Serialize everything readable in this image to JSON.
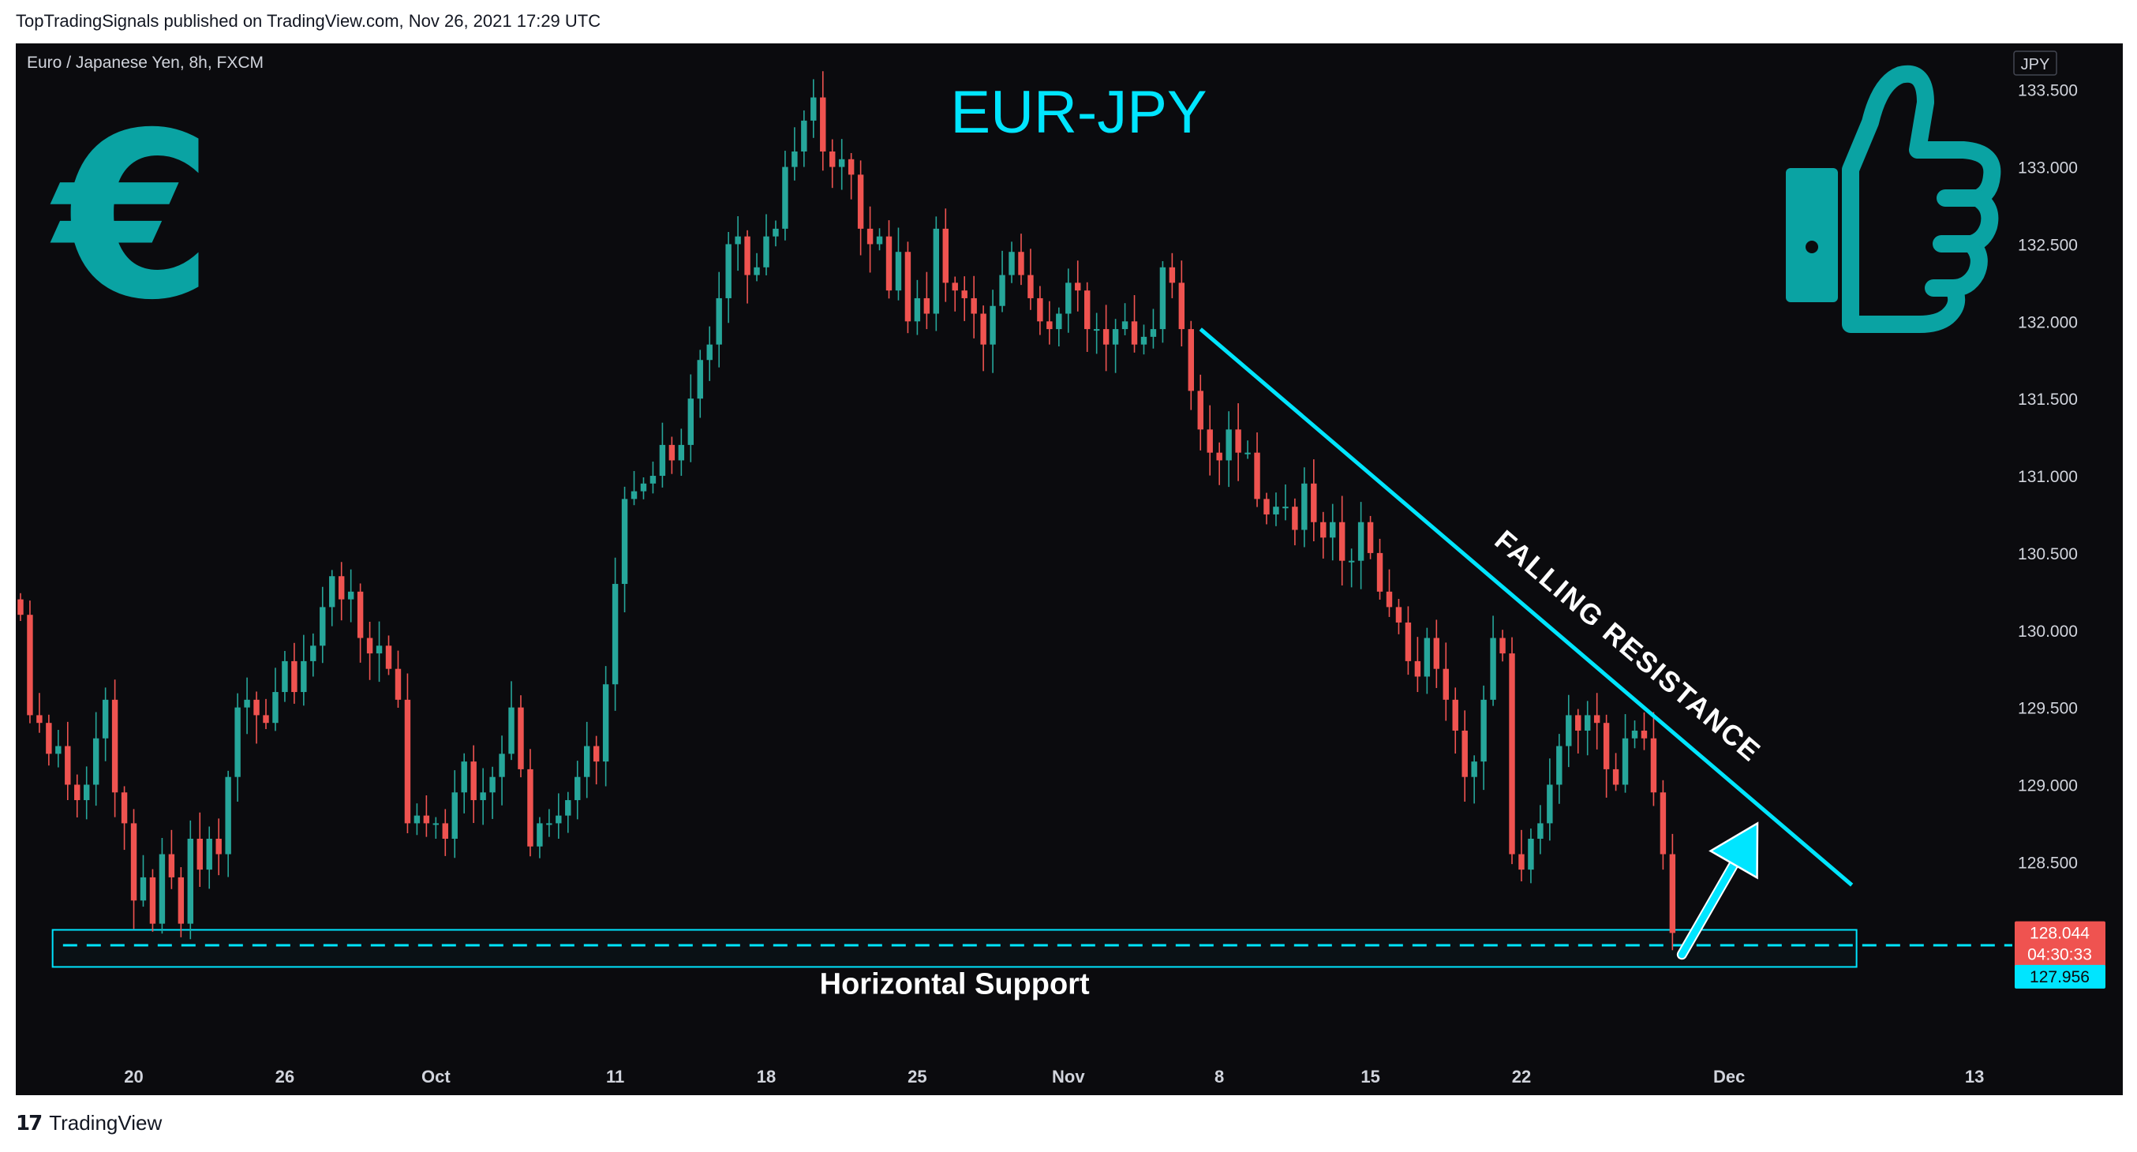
{
  "header": {
    "publish_line": "TopTradingSignals published on TradingView.com, Nov 26, 2021 17:29 UTC"
  },
  "footer": {
    "logo_text": "TradingView"
  },
  "icons": {
    "euro": "euro-sign-icon",
    "thumbs_up": "thumbs-up-icon",
    "tv_logo": "tradingview-logo-icon"
  },
  "colors": {
    "background": "#0b0b0e",
    "bull": "#26a69a",
    "bear": "#ef5350",
    "accent": "#00e5ff",
    "icon_teal": "#0aa3a3"
  },
  "chart_data": {
    "type": "candlestick",
    "title": "EUR-JPY",
    "symbol_line": "Euro / Japanese Yen, 8h, FXCM",
    "currency": "JPY",
    "ylim": [
      127.25,
      133.8
    ],
    "yticks": [
      "133.500",
      "133.000",
      "132.500",
      "132.000",
      "131.500",
      "131.000",
      "130.500",
      "130.000",
      "129.500",
      "129.000",
      "128.500"
    ],
    "xtick_labels": [
      {
        "label": "20",
        "bar": 12
      },
      {
        "label": "26",
        "bar": 28
      },
      {
        "label": "Oct",
        "bar": 44
      },
      {
        "label": "11",
        "bar": 63
      },
      {
        "label": "18",
        "bar": 79
      },
      {
        "label": "25",
        "bar": 95
      },
      {
        "label": "Nov",
        "bar": 111
      },
      {
        "label": "8",
        "bar": 127
      },
      {
        "label": "15",
        "bar": 143
      },
      {
        "label": "22",
        "bar": 159
      },
      {
        "label": "Dec",
        "bar": 181
      },
      {
        "label": "13",
        "bar": 207
      }
    ],
    "x_domain": [
      -0.5,
      211
    ],
    "closes": [
      130.1,
      129.45,
      129.4,
      129.2,
      129.25,
      129.0,
      128.9,
      129.0,
      129.3,
      129.55,
      128.95,
      128.75,
      128.25,
      128.4,
      128.1,
      128.55,
      128.4,
      128.1,
      128.65,
      128.45,
      128.65,
      128.55,
      129.05,
      129.5,
      129.55,
      129.45,
      129.4,
      129.6,
      129.8,
      129.6,
      129.8,
      129.9,
      130.15,
      130.35,
      130.2,
      130.25,
      129.95,
      129.85,
      129.9,
      129.75,
      129.55,
      128.75,
      128.8,
      128.75,
      128.75,
      128.65,
      128.95,
      129.15,
      128.9,
      128.95,
      129.05,
      129.2,
      129.5,
      129.1,
      128.6,
      128.75,
      128.75,
      128.8,
      128.9,
      129.05,
      129.25,
      129.15,
      129.65,
      130.3,
      130.85,
      130.9,
      130.95,
      131.0,
      131.2,
      131.1,
      131.2,
      131.5,
      131.75,
      131.85,
      132.15,
      132.5,
      132.55,
      132.3,
      132.35,
      132.55,
      132.6,
      133.0,
      133.1,
      133.3,
      133.45,
      133.1,
      133.0,
      133.05,
      132.95,
      132.6,
      132.5,
      132.55,
      132.2,
      132.45,
      132.0,
      132.15,
      132.05,
      132.6,
      132.25,
      132.2,
      132.15,
      132.05,
      131.85,
      132.1,
      132.3,
      132.45,
      132.3,
      132.15,
      132.0,
      131.95,
      132.05,
      132.25,
      132.2,
      131.95,
      131.95,
      131.85,
      131.95,
      132.0,
      131.85,
      131.9,
      131.95,
      132.35,
      132.25,
      131.95,
      131.55,
      131.3,
      131.15,
      131.1,
      131.3,
      131.15,
      131.15,
      130.85,
      130.75,
      130.8,
      130.8,
      130.65,
      130.95,
      130.7,
      130.6,
      130.7,
      130.45,
      130.45,
      130.7,
      130.5,
      130.25,
      130.15,
      130.05,
      129.8,
      129.7,
      129.95,
      129.75,
      129.55,
      129.35,
      129.05,
      129.15,
      129.55,
      129.95,
      129.85,
      128.55,
      128.45,
      128.65,
      128.75,
      129.0,
      129.25,
      129.45,
      129.35,
      129.45,
      129.4,
      129.1,
      129.0,
      129.3,
      129.35,
      129.3,
      128.95,
      128.55,
      128.04
    ]
  },
  "annotations": {
    "resistance_label": "FALLING RESISTANCE",
    "support_label": "Horizontal Support",
    "support_level": 127.96,
    "zone_top": 128.06,
    "zone_bottom": 127.82,
    "resistance_line": {
      "start_bar": 125,
      "start_price": 131.95,
      "end_bar": 194,
      "end_price": 128.35
    },
    "arrow": {
      "from_bar": 176,
      "from_price": 127.9,
      "to_bar": 184,
      "to_price": 128.75
    }
  },
  "price_badges": {
    "last_price": "128.044",
    "countdown": "04:30:33",
    "support_price": "127.956"
  }
}
